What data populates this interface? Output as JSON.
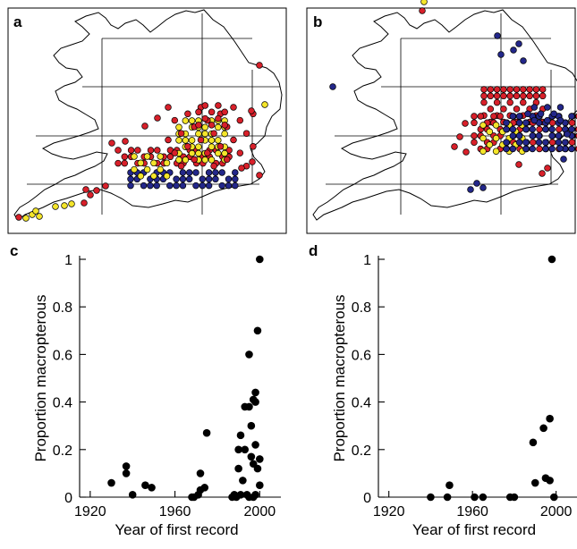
{
  "panels": {
    "a": "a",
    "b": "b",
    "c": "c",
    "d": "d"
  },
  "map_colors": {
    "red": "#d8202a",
    "yellow": "#f4e52a",
    "blue": "#23278a",
    "outline": "#000000"
  },
  "chart_data": [
    {
      "panel": "c",
      "type": "scatter",
      "xlabel": "Year of first record",
      "ylabel": "Proportion macropterous",
      "xlim": [
        1915,
        2010
      ],
      "ylim": [
        0,
        1
      ],
      "xticks": [
        "1920",
        "1960",
        "2000"
      ],
      "xtick_values": [
        1920,
        1960,
        2000
      ],
      "yticks": [
        "0",
        "0.2",
        "0.4",
        "0.6",
        "0.8",
        "1"
      ],
      "ytick_values": [
        0,
        0.2,
        0.4,
        0.6,
        0.8,
        1
      ],
      "grid": false,
      "series": [
        {
          "points": [
            [
              1930,
              0.06
            ],
            [
              1937,
              0.13
            ],
            [
              1937,
              0.1
            ],
            [
              1940,
              0.01
            ],
            [
              1946,
              0.05
            ],
            [
              1949,
              0.04
            ],
            [
              1968,
              0.0
            ],
            [
              1969,
              0.0
            ],
            [
              1971,
              0.01
            ],
            [
              1972,
              0.1
            ],
            [
              1972,
              0.03
            ],
            [
              1974,
              0.04
            ],
            [
              1975,
              0.27
            ],
            [
              1987,
              0.0
            ],
            [
              1988,
              0.01
            ],
            [
              1989,
              0.0
            ],
            [
              1990,
              0.2
            ],
            [
              1990,
              0.12
            ],
            [
              1991,
              0.26
            ],
            [
              1991,
              0.01
            ],
            [
              1992,
              0.07
            ],
            [
              1993,
              0.2
            ],
            [
              1993,
              0.38
            ],
            [
              1994,
              0.01
            ],
            [
              1995,
              0.6
            ],
            [
              1995,
              0.38
            ],
            [
              1995,
              0.0
            ],
            [
              1996,
              0.17
            ],
            [
              1996,
              0.3
            ],
            [
              1997,
              0.41
            ],
            [
              1997,
              0.14
            ],
            [
              1997,
              0.0
            ],
            [
              1998,
              0.44
            ],
            [
              1998,
              0.4
            ],
            [
              1998,
              0.22
            ],
            [
              1998,
              0.01
            ],
            [
              1999,
              0.7
            ],
            [
              1999,
              0.12
            ],
            [
              2000,
              1.0
            ],
            [
              2000,
              0.16
            ],
            [
              2000,
              0.05
            ]
          ]
        }
      ]
    },
    {
      "panel": "d",
      "type": "scatter",
      "xlabel": "Year of first record",
      "ylabel": "Proportion macropterous",
      "xlim": [
        1915,
        2010
      ],
      "ylim": [
        0,
        1
      ],
      "xticks": [
        "1920",
        "1960",
        "2000"
      ],
      "xtick_values": [
        1920,
        1960,
        2000
      ],
      "yticks": [
        "0",
        "0.2",
        "0.4",
        "0.6",
        "0.8",
        "1"
      ],
      "ytick_values": [
        0,
        0.2,
        0.4,
        0.6,
        0.8,
        1
      ],
      "grid": false,
      "series": [
        {
          "points": [
            [
              1940,
              0.0
            ],
            [
              1948,
              0.0
            ],
            [
              1949,
              0.05
            ],
            [
              1961,
              0.0
            ],
            [
              1965,
              0.0
            ],
            [
              1978,
              0.0
            ],
            [
              1980,
              0.0
            ],
            [
              1989,
              0.23
            ],
            [
              1990,
              0.06
            ],
            [
              1994,
              0.29
            ],
            [
              1995,
              0.08
            ],
            [
              1997,
              0.33
            ],
            [
              1997,
              0.07
            ],
            [
              1998,
              1.0
            ],
            [
              1999,
              0.0
            ]
          ]
        }
      ]
    }
  ]
}
